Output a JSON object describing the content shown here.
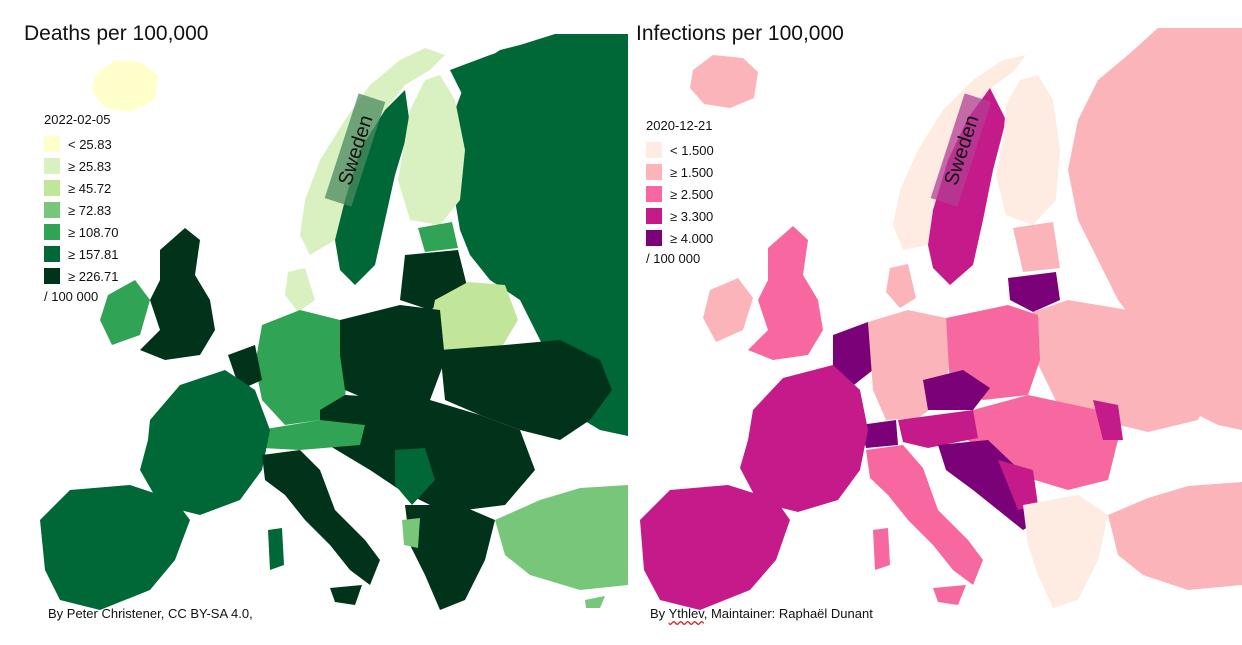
{
  "left_map": {
    "title": "Deaths per 100,000",
    "legend": {
      "date": "2022-02-05",
      "items": [
        {
          "label": "< 25.83",
          "color": "#ffffcc"
        },
        {
          "label": "≥ 25.83",
          "color": "#d9f0c0"
        },
        {
          "label": "≥ 45.72",
          "color": "#c2e699"
        },
        {
          "label": "≥ 72.83",
          "color": "#78c679"
        },
        {
          "label": "≥ 108.70",
          "color": "#31a354"
        },
        {
          "label": "≥ 157.81",
          "color": "#006837"
        },
        {
          "label": "≥ 226.71",
          "color": "#00331a"
        }
      ],
      "unit": "/ 100 000"
    },
    "highlight_label": "Sweden",
    "credit": "By Peter Christener, CC BY-SA 4.0,"
  },
  "right_map": {
    "title": "Infections per 100,000",
    "legend": {
      "date": "2020-12-21",
      "items": [
        {
          "label": "< 1.500",
          "color": "#feebe2"
        },
        {
          "label": "≥ 1.500",
          "color": "#fbb4b9"
        },
        {
          "label": "≥ 2.500",
          "color": "#f768a1"
        },
        {
          "label": "≥ 3.300",
          "color": "#c51b8a"
        },
        {
          "label": "≥ 4.000",
          "color": "#7a0177"
        }
      ],
      "unit": "/ 100 000"
    },
    "highlight_label": "Sweden",
    "credit_prefix": "By ",
    "credit_author": "Ythlev",
    "credit_suffix": ", Maintainer: Raphaël Dunant"
  }
}
